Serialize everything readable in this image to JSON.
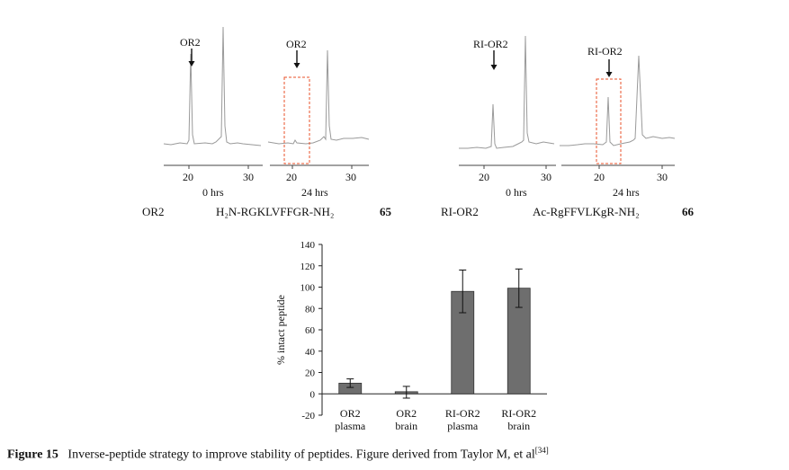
{
  "chromatograms": {
    "left": {
      "label_a": "OR2",
      "label_b": "OR2",
      "ticks_a": [
        "20",
        "30"
      ],
      "ticks_b": [
        "20",
        "30"
      ],
      "time_a": "0 hrs",
      "time_b": "24 hrs",
      "name": "OR2",
      "sequence": "H₂N-RGKLVFFGR-NH₂",
      "compound": "65"
    },
    "right": {
      "label_a": "RI-OR2",
      "label_b": "RI-OR2",
      "ticks_a": [
        "20",
        "30"
      ],
      "ticks_b": [
        "20",
        "30"
      ],
      "time_a": "0 hrs",
      "time_b": "24 hrs",
      "name": "RI-OR2",
      "sequence": "Ac-RgFFVLKgR-NH₂",
      "compound": "66"
    }
  },
  "chart_data": {
    "type": "bar",
    "title": "",
    "xlabel": "",
    "ylabel": "% intact peptide",
    "ylim": [
      -20,
      140
    ],
    "yticks": [
      -20,
      0,
      20,
      40,
      60,
      80,
      100,
      120,
      140
    ],
    "categories": [
      [
        "OR2",
        "plasma"
      ],
      [
        "OR2",
        "brain"
      ],
      [
        "RI-OR2",
        "plasma"
      ],
      [
        "RI-OR2",
        "brain"
      ]
    ],
    "values": [
      10,
      2,
      96,
      99
    ],
    "error_low": [
      6,
      -4,
      76,
      81
    ],
    "error_high": [
      14,
      7,
      116,
      117
    ],
    "bar_color": "#6e6e6e"
  },
  "caption": {
    "label": "Figure 15",
    "text": "Inverse-peptide strategy to improve stability of peptides. Figure derived from Taylor M, et al",
    "ref": "[34]"
  },
  "colors": {
    "trace": "#9a9a9a",
    "dashed_box": "#e8502a"
  }
}
